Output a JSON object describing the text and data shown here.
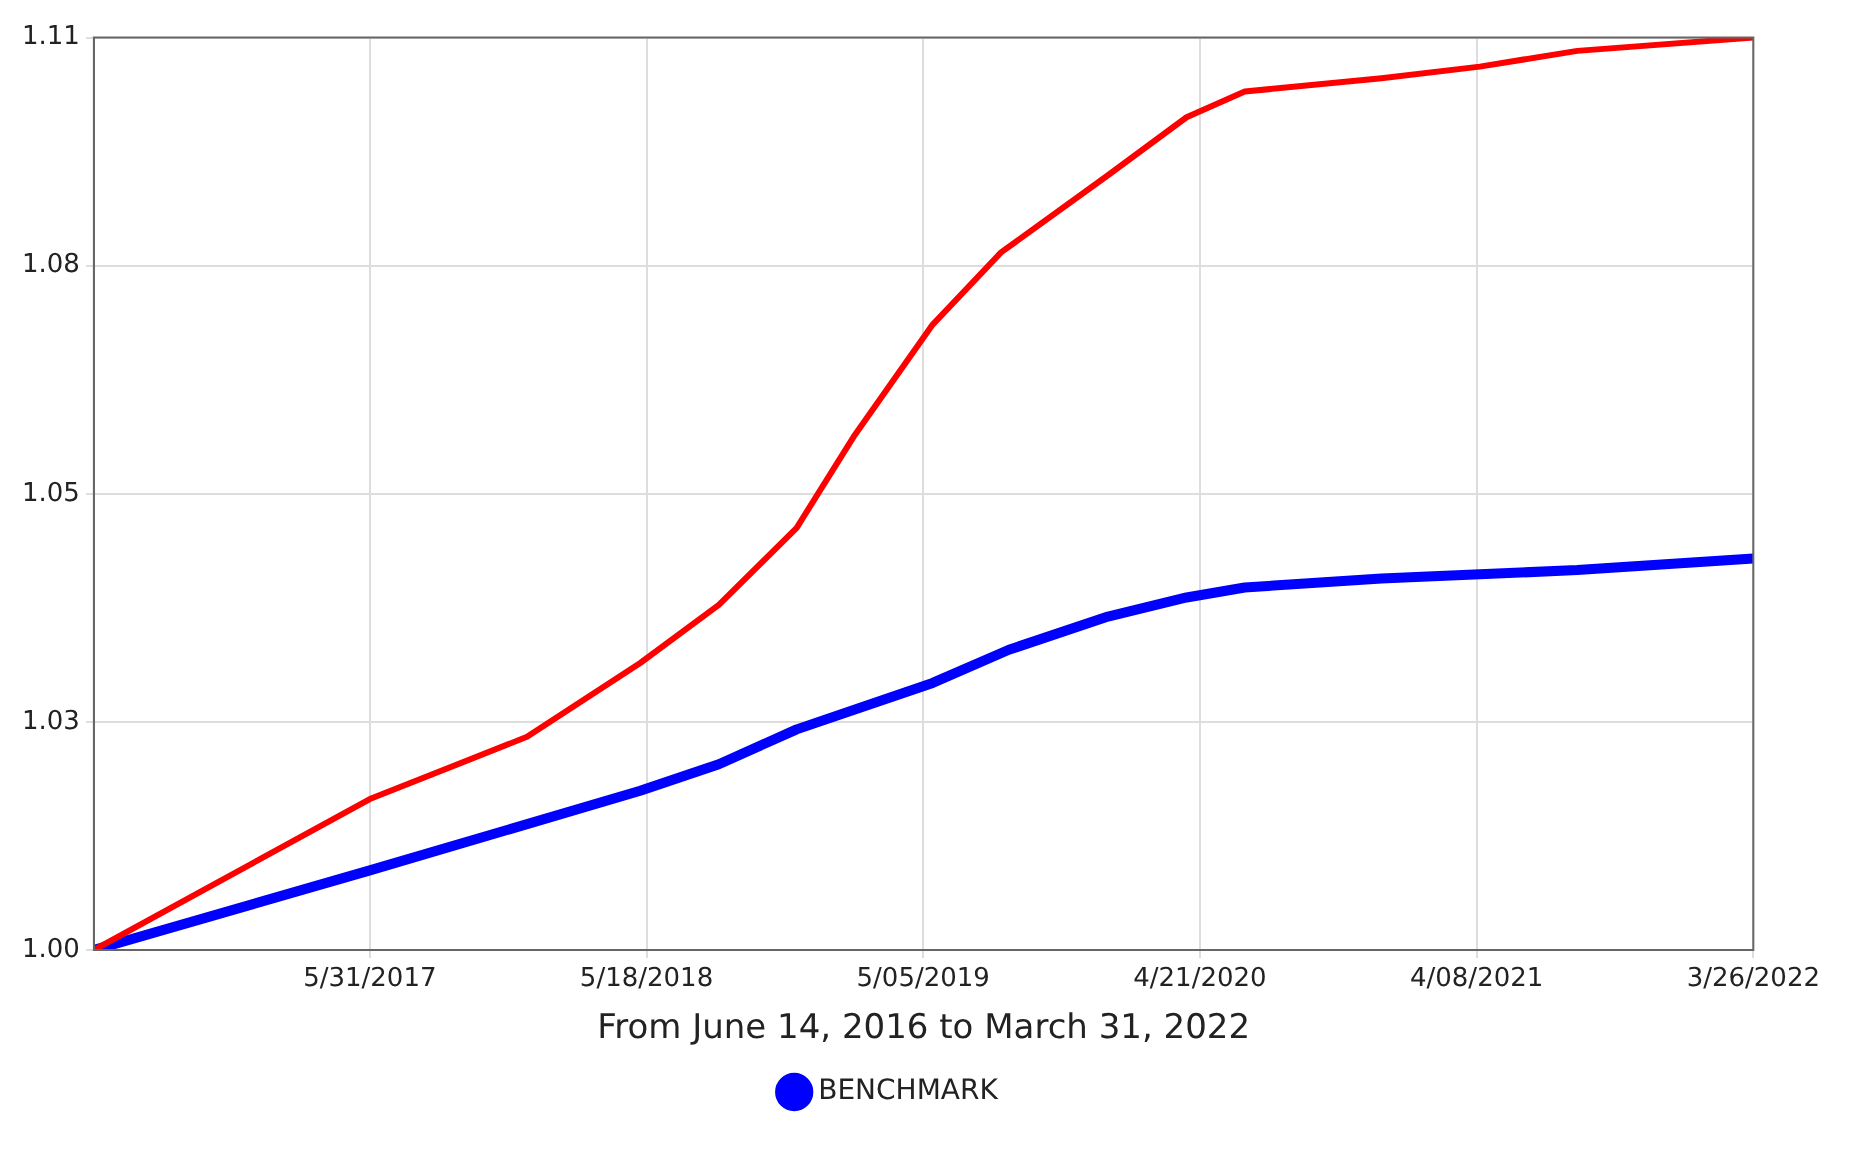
{
  "chart_data": {
    "type": "line",
    "xlabel": "From June 14, 2016 to March 31, 2022",
    "xlim": [
      "2016-06-14",
      "2022-03-26"
    ],
    "xticks": [
      {
        "value": "2017-05-31",
        "label": "5/31/2017"
      },
      {
        "value": "2018-05-18",
        "label": "5/18/2018"
      },
      {
        "value": "2019-05-05",
        "label": "5/05/2019"
      },
      {
        "value": "2020-04-21",
        "label": "4/21/2020"
      },
      {
        "value": "2021-04-08",
        "label": "4/08/2021"
      },
      {
        "value": "2022-03-26",
        "label": "3/26/2022"
      }
    ],
    "ylim": [
      1.0,
      1.11
    ],
    "yticks": [
      {
        "value": 1.0,
        "label": "1.00"
      },
      {
        "value": 1.0275,
        "label": "1.03"
      },
      {
        "value": 1.055,
        "label": "1.05"
      },
      {
        "value": 1.0825,
        "label": "1.08"
      },
      {
        "value": 1.11,
        "label": "1.11"
      }
    ],
    "grid": true,
    "legend": "bottom",
    "marker": "none",
    "line_style": "solid",
    "series": [
      {
        "color": "#ff0000",
        "x": [
          "2016-06-14",
          "2017-05-31",
          "2017-12-17",
          "2018-05-10",
          "2018-08-18",
          "2018-11-25",
          "2019-02-07",
          "2019-05-17",
          "2019-08-12",
          "2019-12-26",
          "2020-04-04",
          "2020-06-17",
          "2020-12-08",
          "2021-04-12",
          "2021-08-14",
          "2022-03-26"
        ],
        "values": [
          1.0,
          1.0182,
          1.0257,
          1.0346,
          1.0416,
          1.0509,
          1.0621,
          1.0754,
          1.0841,
          1.0934,
          1.1004,
          1.1035,
          1.1051,
          1.1065,
          1.1084,
          1.11
        ]
      },
      {
        "name": "BENCHMARK",
        "color": "#0000ff",
        "x": [
          "2016-06-14",
          "2017-05-31",
          "2018-05-10",
          "2018-08-18",
          "2018-11-25",
          "2019-05-17",
          "2019-08-22",
          "2019-12-26",
          "2020-04-04",
          "2020-06-17",
          "2020-12-08",
          "2021-04-12",
          "2021-08-14",
          "2022-03-26"
        ],
        "values": [
          1.0,
          1.0096,
          1.0192,
          1.0224,
          1.0266,
          1.0322,
          1.0362,
          1.0402,
          1.0425,
          1.0437,
          1.0448,
          1.0453,
          1.0458,
          1.0472
        ]
      }
    ]
  }
}
